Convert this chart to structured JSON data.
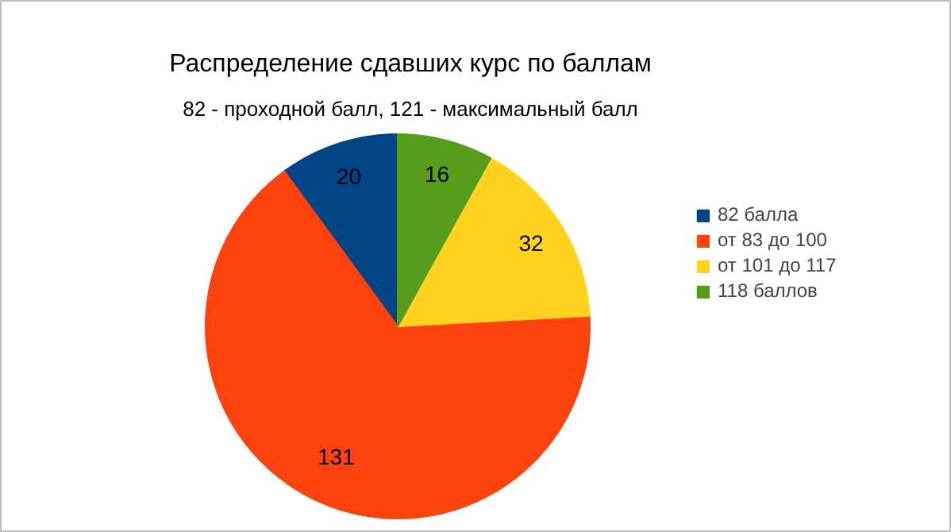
{
  "chart_data": {
    "type": "pie",
    "title": "Распределение сдавших курс по баллам",
    "subtitle": "82 - проходной балл, 121 - максимальный балл",
    "categories": [
      "82 балла",
      "от 83 до 100",
      "от 101 до 117",
      "118 баллов"
    ],
    "values": [
      20,
      131,
      32,
      16
    ],
    "colors": [
      "#004586",
      "#ff420e",
      "#ffd320",
      "#579d1c"
    ],
    "data_labels": true,
    "legend": "right"
  }
}
